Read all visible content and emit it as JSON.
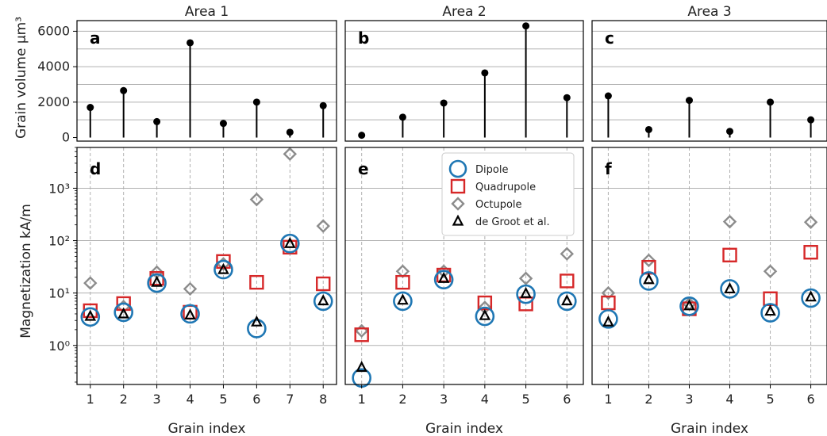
{
  "figure": {
    "y_label_top": "Grain volume  µm³",
    "y_label_bottom": "Magnetization kA/m",
    "x_label": "Grain index",
    "legend": [
      "Dipole",
      "Quadrupole",
      "Octupole",
      "de Groot et al."
    ],
    "y_ticks_top": [
      "0",
      "2000",
      "4000",
      "6000"
    ],
    "y_ticks_bottom": [
      "10⁰",
      "10¹",
      "10²",
      "10³"
    ]
  },
  "colors": {
    "dipole": "#1f77b4",
    "quadrupole": "#d62728",
    "octupole": "#8c8c8c",
    "degroot": "#000000",
    "stem": "#000000",
    "grid": "#b0b0b0"
  },
  "chart_data": [
    {
      "type": "stem",
      "panel": "a",
      "title": "Area 1",
      "x": [
        1,
        2,
        3,
        4,
        5,
        6,
        7,
        8
      ],
      "values": [
        1700,
        2650,
        900,
        5350,
        800,
        2000,
        300,
        1800
      ],
      "ylim": [
        -200,
        6600
      ],
      "yticks": [
        0,
        2000,
        4000,
        6000
      ]
    },
    {
      "type": "stem",
      "panel": "b",
      "title": "Area 2",
      "x": [
        1,
        2,
        3,
        4,
        5,
        6
      ],
      "values": [
        130,
        1150,
        1950,
        3650,
        6300,
        2250
      ],
      "ylim": [
        -200,
        6600
      ],
      "yticks": [
        0,
        2000,
        4000,
        6000
      ]
    },
    {
      "type": "stem",
      "panel": "c",
      "title": "Area 3",
      "x": [
        1,
        2,
        3,
        4,
        5,
        6
      ],
      "values": [
        2350,
        450,
        2100,
        350,
        2000,
        1000
      ],
      "ylim": [
        -200,
        6600
      ],
      "yticks": [
        0,
        2000,
        4000,
        6000
      ]
    },
    {
      "type": "scatter",
      "panel": "d",
      "x": [
        1,
        2,
        3,
        4,
        5,
        6,
        7,
        8
      ],
      "yscale": "log",
      "ylim": [
        0.18,
        6000
      ],
      "series": [
        {
          "name": "Dipole",
          "values": [
            3.5,
            4.3,
            15.5,
            4.0,
            28,
            2.1,
            88,
            7.0
          ]
        },
        {
          "name": "Quadrupole",
          "values": [
            4.6,
            6.3,
            19,
            4.3,
            40,
            16,
            75,
            15
          ]
        },
        {
          "name": "Octupole",
          "values": [
            15.5,
            5.5,
            25,
            12,
            36,
            610,
            4500,
            190
          ]
        },
        {
          "name": "de Groot et al.",
          "values": [
            3.6,
            4.0,
            16,
            3.8,
            28,
            2.8,
            88,
            7.1
          ]
        }
      ]
    },
    {
      "type": "scatter",
      "panel": "e",
      "x": [
        1,
        2,
        3,
        4,
        5,
        6
      ],
      "yscale": "log",
      "ylim": [
        0.18,
        6000
      ],
      "series": [
        {
          "name": "Dipole",
          "values": [
            0.24,
            7.0,
            18,
            3.6,
            9.5,
            7.0
          ]
        },
        {
          "name": "Quadrupole",
          "values": [
            1.6,
            16,
            22,
            6.5,
            6.2,
            17
          ]
        },
        {
          "name": "Octupole",
          "values": [
            1.9,
            26,
            26,
            5.3,
            19,
            56
          ]
        },
        {
          "name": "de Groot et al.",
          "values": [
            0.38,
            7.3,
            19,
            3.7,
            9.8,
            7.1
          ]
        }
      ]
    },
    {
      "type": "scatter",
      "panel": "f",
      "x": [
        1,
        2,
        3,
        4,
        5,
        6
      ],
      "yscale": "log",
      "ylim": [
        0.18,
        6000
      ],
      "series": [
        {
          "name": "Dipole",
          "values": [
            3.2,
            17,
            5.6,
            12,
            4.2,
            8.0
          ]
        },
        {
          "name": "Quadrupole",
          "values": [
            6.5,
            31,
            5.0,
            53,
            7.8,
            60
          ]
        },
        {
          "name": "Octupole",
          "values": [
            10,
            42,
            6.2,
            230,
            26,
            225
          ]
        },
        {
          "name": "de Groot et al.",
          "values": [
            2.8,
            18,
            5.7,
            12,
            4.5,
            8.4
          ]
        }
      ]
    }
  ]
}
